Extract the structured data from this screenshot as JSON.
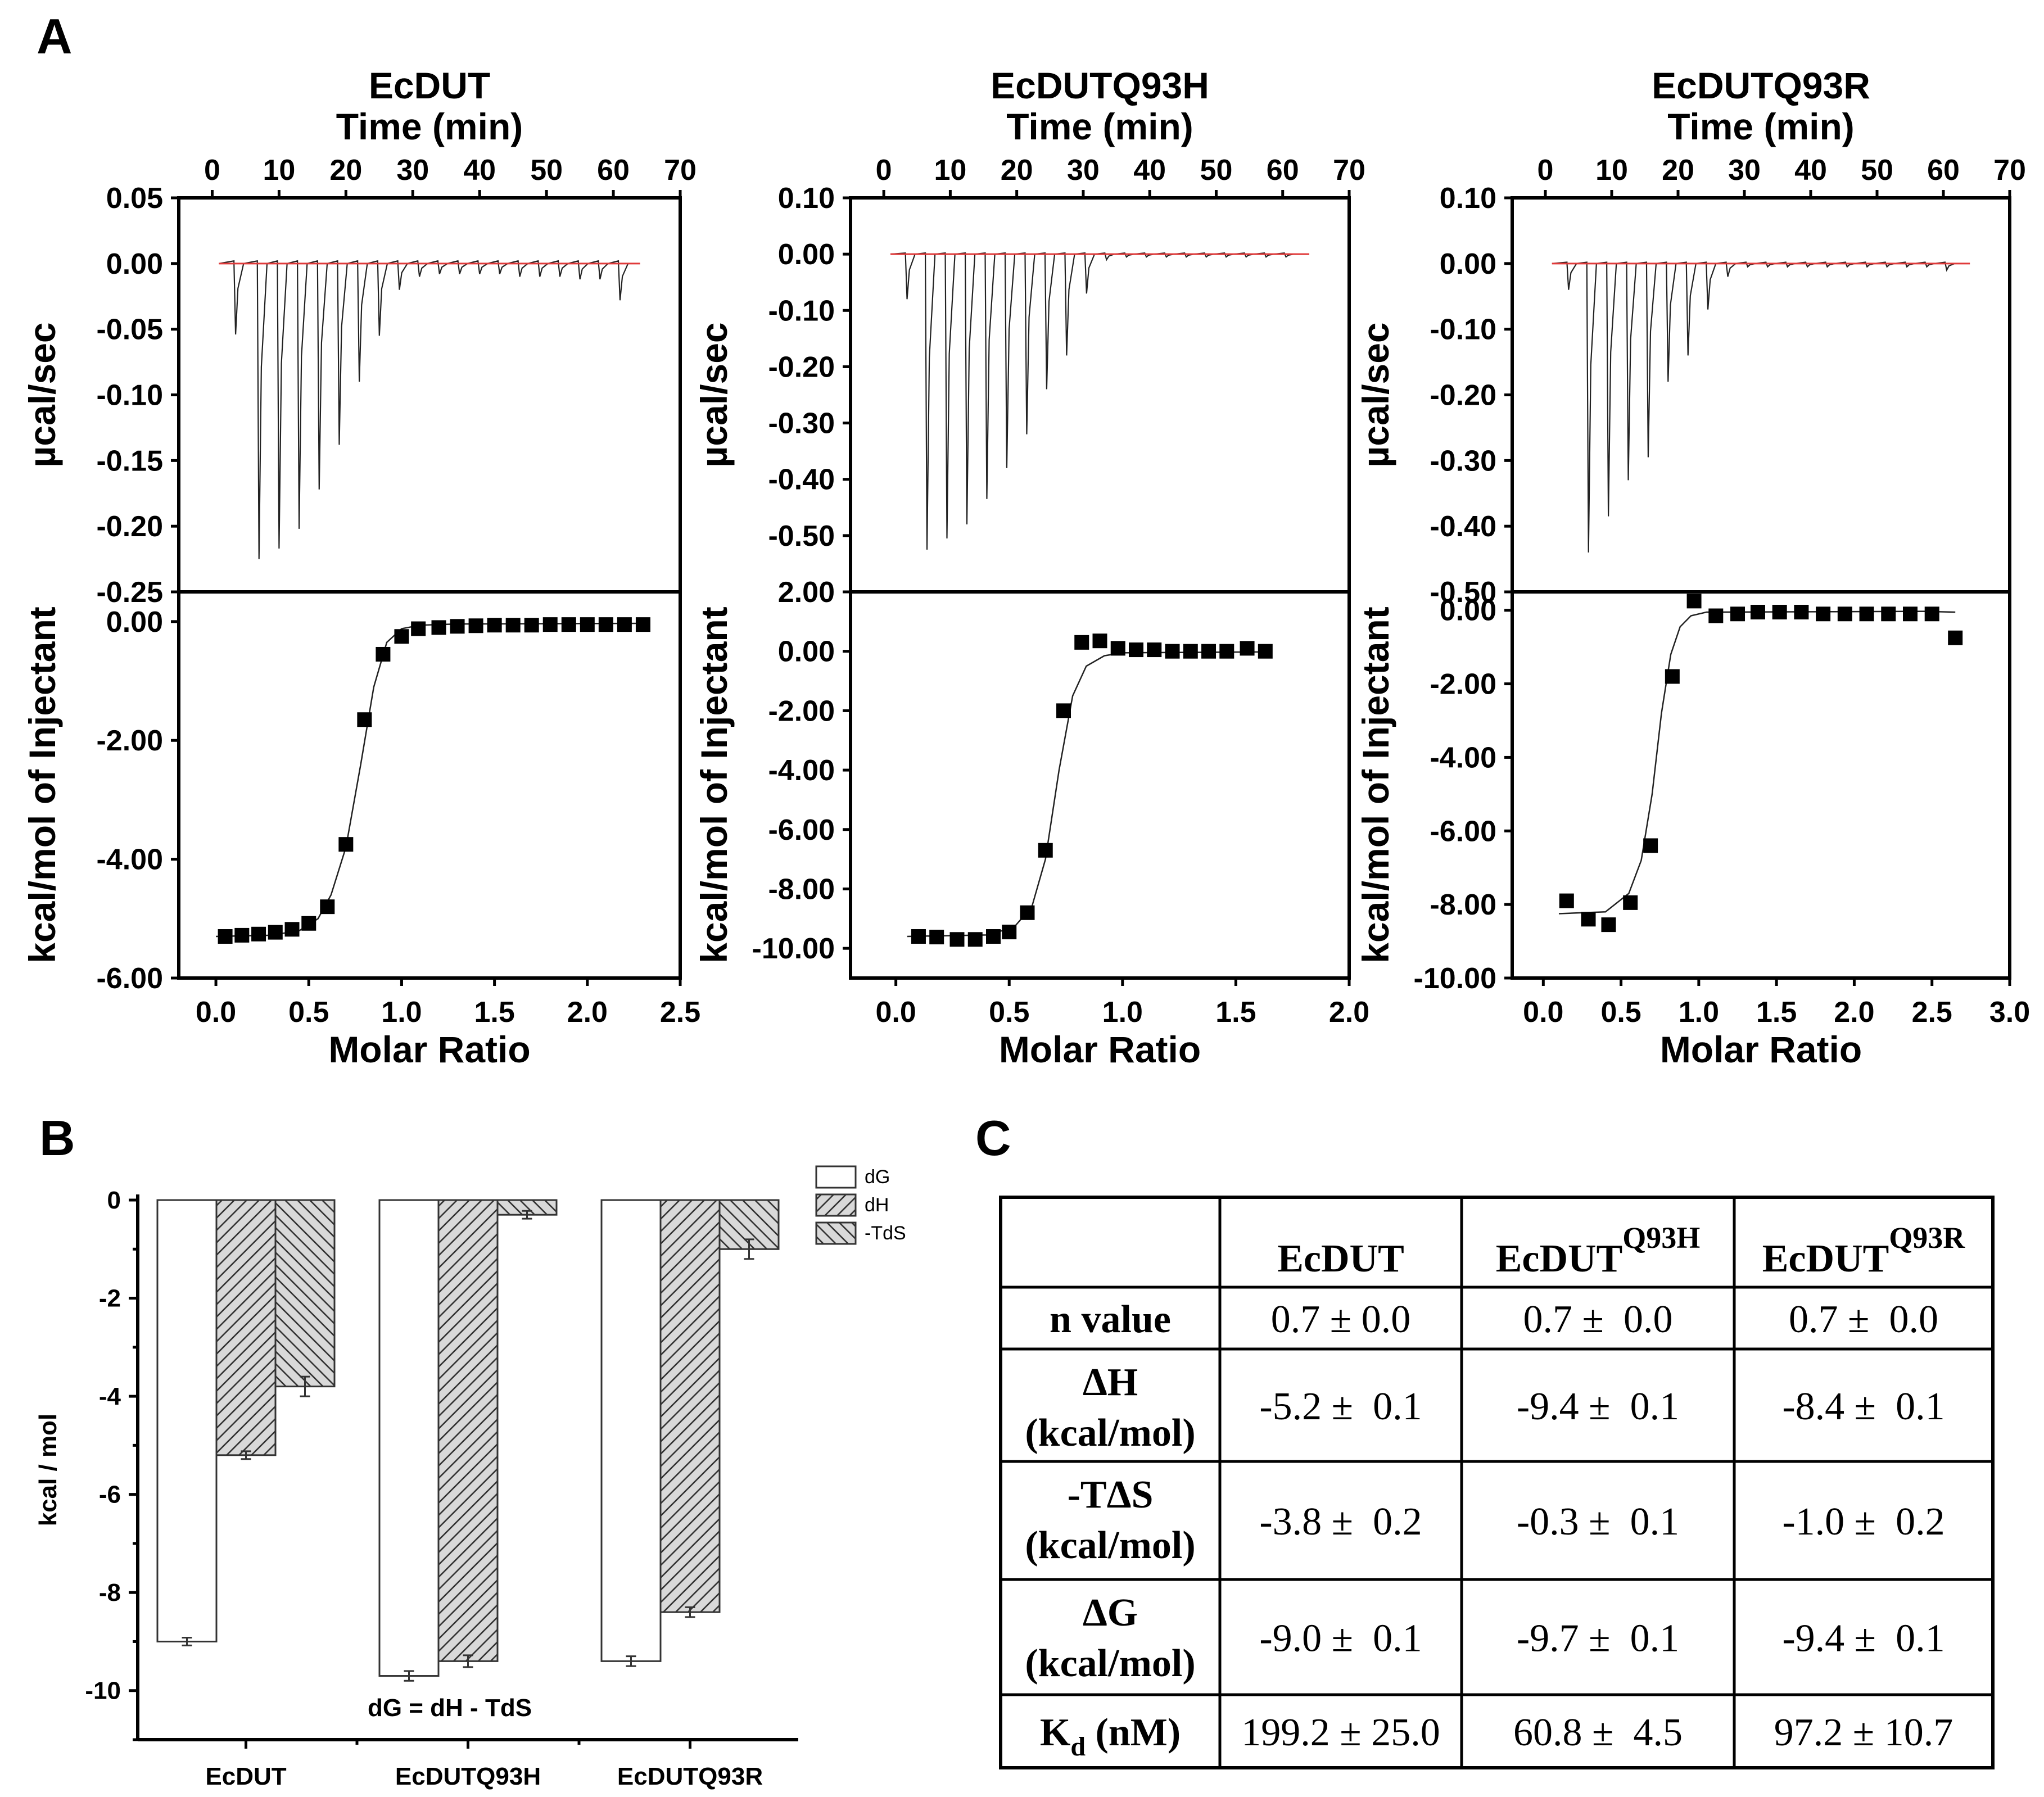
{
  "panel_labels": {
    "a": "A",
    "b": "B",
    "c": "C"
  },
  "chart_data": [
    {
      "type": "line",
      "panel": "A",
      "title": "EcDUT",
      "top": {
        "xlabel": "Time (min)",
        "ylabel": "µcal/sec",
        "xlim": [
          -5,
          70
        ],
        "ylim": [
          -0.25,
          0.05
        ],
        "xticks": [
          "0",
          "10",
          "20",
          "30",
          "40",
          "50",
          "60",
          "70"
        ],
        "yticks": [
          "0.05",
          "0.00",
          "-0.05",
          "-0.10",
          "-0.15",
          "-0.20",
          "-0.25"
        ],
        "trace_range": [
          1,
          63
        ],
        "baseline": 0,
        "baseline_color": "#e03a3a",
        "spikes": [
          [
            3.5,
            -0.054
          ],
          [
            7,
            -0.225
          ],
          [
            10,
            -0.217
          ],
          [
            13,
            -0.202
          ],
          [
            16,
            -0.172
          ],
          [
            19,
            -0.138
          ],
          [
            22,
            -0.09
          ],
          [
            25,
            -0.055
          ],
          [
            28,
            -0.02
          ],
          [
            31,
            -0.01
          ],
          [
            34,
            -0.008
          ],
          [
            37,
            -0.008
          ],
          [
            40,
            -0.008
          ],
          [
            43,
            -0.008
          ],
          [
            46,
            -0.01
          ],
          [
            49,
            -0.01
          ],
          [
            52,
            -0.01
          ],
          [
            55,
            -0.012
          ],
          [
            58,
            -0.012
          ],
          [
            61,
            -0.028
          ]
        ]
      },
      "bottom": {
        "xlabel": "Molar Ratio",
        "ylabel": "kcal/mol of Injectant",
        "xlim": [
          -0.2,
          2.5
        ],
        "ylim": [
          -6,
          0.5
        ],
        "xticks": [
          "0.0",
          "0.5",
          "1.0",
          "1.5",
          "2.0",
          "2.5"
        ],
        "yticks": [
          "0.00",
          "-2.00",
          "-4.00",
          "-6.00"
        ],
        "x": [
          0.05,
          0.14,
          0.23,
          0.32,
          0.41,
          0.5,
          0.6,
          0.7,
          0.8,
          0.9,
          1.0,
          1.09,
          1.2,
          1.3,
          1.4,
          1.5,
          1.6,
          1.7,
          1.8,
          1.9,
          2.0,
          2.1,
          2.2,
          2.3
        ],
        "y": [
          -5.3,
          -5.28,
          -5.26,
          -5.23,
          -5.18,
          -5.08,
          -4.8,
          -3.75,
          -1.65,
          -0.55,
          -0.25,
          -0.12,
          -0.1,
          -0.08,
          -0.07,
          -0.06,
          -0.06,
          -0.06,
          -0.05,
          -0.05,
          -0.05,
          -0.05,
          -0.05,
          -0.05
        ],
        "fit": [
          [
            0.0,
            -5.3
          ],
          [
            0.3,
            -5.28
          ],
          [
            0.45,
            -5.2
          ],
          [
            0.55,
            -5.0
          ],
          [
            0.62,
            -4.6
          ],
          [
            0.7,
            -3.8
          ],
          [
            0.78,
            -2.4
          ],
          [
            0.85,
            -1.1
          ],
          [
            0.92,
            -0.35
          ],
          [
            1.0,
            -0.12
          ],
          [
            1.1,
            -0.06
          ],
          [
            1.3,
            -0.04
          ],
          [
            2.3,
            -0.03
          ]
        ]
      }
    },
    {
      "type": "line",
      "panel": "A",
      "title": "EcDUTQ93H",
      "top": {
        "xlabel": "Time (min)",
        "ylabel": "µcal/sec",
        "xlim": [
          -5,
          70
        ],
        "ylim": [
          -0.6,
          0.1
        ],
        "xticks": [
          "0",
          "10",
          "20",
          "30",
          "40",
          "50",
          "60",
          "70"
        ],
        "yticks": [
          "0.10",
          "0.00",
          "-0.10",
          "-0.20",
          "-0.30",
          "-0.40",
          "-0.50"
        ],
        "trace_range": [
          1,
          63
        ],
        "baseline": 0,
        "baseline_color": "#e03a3a",
        "spikes": [
          [
            3.5,
            -0.08
          ],
          [
            6.5,
            -0.525
          ],
          [
            9.5,
            -0.505
          ],
          [
            12.5,
            -0.48
          ],
          [
            15.5,
            -0.435
          ],
          [
            18.5,
            -0.38
          ],
          [
            21.5,
            -0.32
          ],
          [
            24.5,
            -0.24
          ],
          [
            27.5,
            -0.18
          ],
          [
            30.5,
            -0.07
          ],
          [
            33.5,
            -0.01
          ],
          [
            36.5,
            -0.005
          ],
          [
            39.5,
            -0.005
          ],
          [
            42.5,
            -0.005
          ],
          [
            45.5,
            -0.005
          ],
          [
            48.5,
            -0.005
          ],
          [
            51.5,
            -0.005
          ],
          [
            54.5,
            -0.005
          ],
          [
            57.5,
            -0.005
          ],
          [
            60.5,
            -0.005
          ]
        ]
      },
      "bottom": {
        "xlabel": "Molar Ratio",
        "ylabel": "kcal/mol of Injectant",
        "xlim": [
          -0.2,
          2.0
        ],
        "ylim": [
          -11,
          2
        ],
        "xticks": [
          "0.0",
          "0.5",
          "1.0",
          "1.5",
          "2.0"
        ],
        "yticks": [
          "2.00",
          "0.00",
          "-2.00",
          "-4.00",
          "-6.00",
          "-8.00",
          "-10.00"
        ],
        "x": [
          0.1,
          0.18,
          0.27,
          0.35,
          0.43,
          0.5,
          0.58,
          0.66,
          0.74,
          0.82,
          0.9,
          0.98,
          1.06,
          1.14,
          1.22,
          1.3,
          1.38,
          1.46,
          1.55,
          1.63
        ],
        "y": [
          -9.6,
          -9.62,
          -9.7,
          -9.7,
          -9.6,
          -9.45,
          -8.8,
          -6.7,
          -2.0,
          0.3,
          0.35,
          0.1,
          0.05,
          0.05,
          0.0,
          0.0,
          0.0,
          0.0,
          0.1,
          0.0
        ],
        "fit": [
          [
            0.05,
            -9.6
          ],
          [
            0.4,
            -9.55
          ],
          [
            0.52,
            -9.3
          ],
          [
            0.6,
            -8.6
          ],
          [
            0.66,
            -7.0
          ],
          [
            0.72,
            -4.0
          ],
          [
            0.78,
            -1.5
          ],
          [
            0.84,
            -0.5
          ],
          [
            0.92,
            -0.15
          ],
          [
            1.0,
            -0.05
          ],
          [
            1.63,
            -0.02
          ]
        ]
      }
    },
    {
      "type": "line",
      "panel": "A",
      "title": "EcDUTQ93R",
      "top": {
        "xlabel": "Time (min)",
        "ylabel": "µcal/sec",
        "xlim": [
          -5,
          70
        ],
        "ylim": [
          -0.5,
          0.1
        ],
        "xticks": [
          "0",
          "10",
          "20",
          "30",
          "40",
          "50",
          "60",
          "70"
        ],
        "yticks": [
          "0.10",
          "0.00",
          "-0.10",
          "-0.20",
          "-0.30",
          "-0.40",
          "-0.50"
        ],
        "trace_range": [
          1,
          63
        ],
        "baseline": 0,
        "baseline_color": "#e03a3a",
        "spikes": [
          [
            3.5,
            -0.04
          ],
          [
            6.5,
            -0.44
          ],
          [
            9.5,
            -0.385
          ],
          [
            12.5,
            -0.33
          ],
          [
            15.5,
            -0.295
          ],
          [
            18.5,
            -0.18
          ],
          [
            21.5,
            -0.14
          ],
          [
            24.5,
            -0.07
          ],
          [
            27.5,
            -0.02
          ],
          [
            30.5,
            -0.005
          ],
          [
            33.5,
            -0.005
          ],
          [
            36.5,
            -0.005
          ],
          [
            39.5,
            -0.005
          ],
          [
            42.5,
            -0.005
          ],
          [
            45.5,
            -0.005
          ],
          [
            48.5,
            -0.005
          ],
          [
            51.5,
            -0.005
          ],
          [
            54.5,
            -0.005
          ],
          [
            57.5,
            -0.005
          ],
          [
            60.5,
            -0.01
          ]
        ]
      },
      "bottom": {
        "xlabel": "Molar Ratio",
        "ylabel": "kcal/mol of Injectant",
        "xlim": [
          -0.2,
          3.0
        ],
        "ylim": [
          -10,
          0.5
        ],
        "xticks": [
          "0.0",
          "0.5",
          "1.0",
          "1.5",
          "2.0",
          "2.5",
          "3.0"
        ],
        "yticks": [
          "0.00",
          "-2.00",
          "-4.00",
          "-6.00",
          "-8.00",
          "-10.00"
        ],
        "x": [
          0.15,
          0.29,
          0.42,
          0.56,
          0.69,
          0.83,
          0.97,
          1.11,
          1.25,
          1.38,
          1.52,
          1.66,
          1.8,
          1.94,
          2.08,
          2.22,
          2.36,
          2.5,
          2.65
        ],
        "y": [
          -7.9,
          -8.4,
          -8.55,
          -7.95,
          -6.4,
          -1.8,
          0.25,
          -0.15,
          -0.1,
          -0.05,
          -0.05,
          -0.05,
          -0.1,
          -0.1,
          -0.1,
          -0.1,
          -0.1,
          -0.1,
          -0.75
        ],
        "fit": [
          [
            0.1,
            -8.25
          ],
          [
            0.4,
            -8.2
          ],
          [
            0.55,
            -7.7
          ],
          [
            0.63,
            -6.8
          ],
          [
            0.7,
            -5.0
          ],
          [
            0.76,
            -2.8
          ],
          [
            0.82,
            -1.2
          ],
          [
            0.88,
            -0.45
          ],
          [
            0.95,
            -0.15
          ],
          [
            1.05,
            -0.05
          ],
          [
            2.45,
            -0.03
          ],
          [
            2.65,
            -0.05
          ]
        ]
      }
    },
    {
      "type": "bar",
      "panel": "B",
      "categories": [
        "EcDUT",
        "EcDUTQ93H",
        "EcDUTQ93R"
      ],
      "series": [
        {
          "name": "dG",
          "values": [
            -9.0,
            -9.7,
            -9.4
          ],
          "errors": [
            0.08,
            0.1,
            0.1
          ],
          "pattern": "none"
        },
        {
          "name": "dH",
          "values": [
            -5.2,
            -9.4,
            -8.4
          ],
          "errors": [
            0.08,
            0.12,
            0.1
          ],
          "pattern": "forward-hatch"
        },
        {
          "name": "-TdS",
          "values": [
            -3.8,
            -0.3,
            -1.0
          ],
          "errors": [
            0.2,
            0.08,
            0.2
          ],
          "pattern": "back-hatch"
        }
      ],
      "ylabel": "kcal / mol",
      "ylim": [
        -11,
        0
      ],
      "yticks": [
        "0",
        "-2",
        "-4",
        "-6",
        "-8",
        "-10"
      ],
      "annotation": "dG = dH - TdS",
      "legend_position": "top-right",
      "colors": {
        "bar_fill": "#ffffff",
        "hatch_fill": "#d9d9d9"
      }
    },
    {
      "type": "table",
      "panel": "C",
      "columns": [
        {
          "name": "EcDUT",
          "sup": ""
        },
        {
          "name": "EcDUT",
          "sup": "Q93H"
        },
        {
          "name": "EcDUT",
          "sup": "Q93R"
        }
      ],
      "rows": [
        {
          "label_lines": [
            "n value"
          ],
          "values": [
            "0.7 ± 0.0",
            "0.7 ±  0.0",
            "0.7 ±  0.0"
          ]
        },
        {
          "label_lines": [
            "ΔH",
            "(kcal/mol)"
          ],
          "values": [
            "-5.2 ±  0.1",
            "-9.4 ±  0.1",
            "-8.4 ±  0.1"
          ]
        },
        {
          "label_lines": [
            "-TΔS",
            "(kcal/mol)"
          ],
          "values": [
            "-3.8 ±  0.2",
            "-0.3 ±  0.1",
            "-1.0 ±  0.2"
          ]
        },
        {
          "label_lines": [
            "ΔG",
            "(kcal/mol)"
          ],
          "values": [
            "-9.0 ±  0.1",
            "-9.7 ±  0.1",
            "-9.4 ±  0.1"
          ]
        },
        {
          "label_lines": [
            "K"
          ],
          "label_sub": "d",
          "label_suffix": " (nM)",
          "values": [
            "199.2 ± 25.0",
            "60.8 ±  4.5",
            "97.2 ± 10.7"
          ]
        }
      ]
    }
  ]
}
